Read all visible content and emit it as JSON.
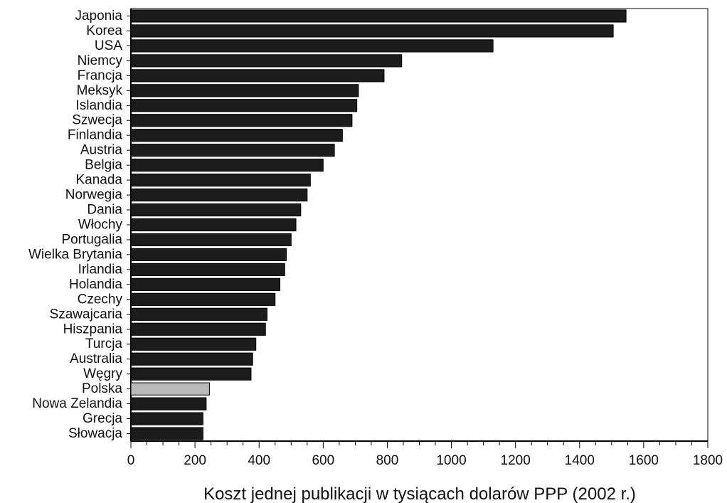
{
  "colors": {
    "bar": "#1c1c1c",
    "highlight": "#b9b9b9",
    "outline": "#000000",
    "axis": "#000000"
  },
  "chart_data": {
    "type": "bar",
    "orientation": "horizontal",
    "title": "",
    "xlabel": "Koszt jednej publikacji w tysiącach dolarów PPP (2002 r.)",
    "ylabel": "",
    "xlim": [
      0,
      1800
    ],
    "xticks": [
      0,
      200,
      400,
      600,
      800,
      1000,
      1200,
      1400,
      1600,
      1800
    ],
    "grid": false,
    "highlighted_category": "Polska",
    "categories": [
      "Japonia",
      "Korea",
      "USA",
      "Niemcy",
      "Francja",
      "Meksyk",
      "Islandia",
      "Szwecja",
      "Finlandia",
      "Austria",
      "Belgia",
      "Kanada",
      "Norwegia",
      "Dania",
      "Włochy",
      "Portugalia",
      "Wielka Brytania",
      "Irlandia",
      "Holandia",
      "Czechy",
      "Szawajcaria",
      "Hiszpania",
      "Turcja",
      "Australia",
      "Węgry",
      "Polska",
      "Nowa Zelandia",
      "Grecja",
      "Słowacja"
    ],
    "values": [
      1545,
      1505,
      1130,
      845,
      790,
      710,
      705,
      690,
      660,
      635,
      600,
      560,
      550,
      530,
      515,
      500,
      485,
      480,
      465,
      450,
      425,
      420,
      390,
      380,
      375,
      245,
      235,
      225,
      225
    ]
  }
}
